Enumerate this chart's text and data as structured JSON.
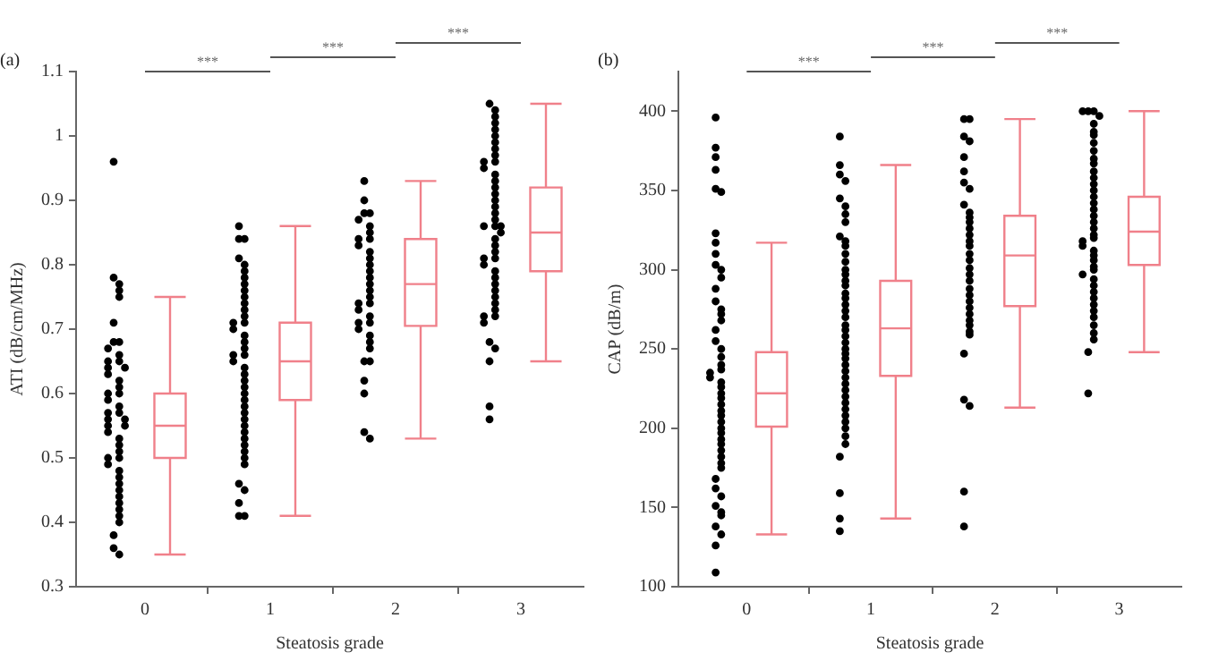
{
  "chart_data": [
    {
      "type": "box",
      "title": "(a)",
      "xlabel": "Steatosis grade",
      "ylabel": "ATI (dB/cm/MHz)",
      "categories": [
        "0",
        "1",
        "2",
        "3"
      ],
      "ylim": [
        0.3,
        1.1
      ],
      "yticks": [
        0.3,
        0.4,
        0.5,
        0.6,
        0.7,
        0.8,
        0.9,
        1,
        1.1
      ],
      "marker": "circle",
      "annotations": [
        "***",
        "***",
        "***"
      ],
      "series": [
        {
          "type": "scatter",
          "color": "#000000",
          "x": [
            "0",
            "0",
            "0",
            "0",
            "0",
            "0",
            "0",
            "0",
            "0",
            "0",
            "0",
            "0",
            "0",
            "0",
            "0",
            "0",
            "0",
            "0",
            "0",
            "0",
            "0",
            "0",
            "0",
            "0",
            "0",
            "0",
            "0",
            "0",
            "0",
            "0",
            "0",
            "0",
            "0",
            "0",
            "0",
            "0",
            "0",
            "0",
            "0",
            "0",
            "0",
            "0",
            "0",
            "0",
            "0",
            "0"
          ],
          "values": [
            0.96,
            0.78,
            0.77,
            0.76,
            0.75,
            0.71,
            0.68,
            0.68,
            0.67,
            0.66,
            0.65,
            0.65,
            0.64,
            0.64,
            0.63,
            0.62,
            0.61,
            0.6,
            0.6,
            0.59,
            0.58,
            0.57,
            0.57,
            0.56,
            0.56,
            0.55,
            0.55,
            0.54,
            0.53,
            0.52,
            0.51,
            0.5,
            0.5,
            0.49,
            0.48,
            0.47,
            0.46,
            0.45,
            0.44,
            0.43,
            0.42,
            0.41,
            0.4,
            0.38,
            0.36,
            0.35
          ]
        },
        {
          "type": "scatter",
          "color": "#000000",
          "x": [
            "1",
            "1",
            "1",
            "1",
            "1",
            "1",
            "1",
            "1",
            "1",
            "1",
            "1",
            "1",
            "1",
            "1",
            "1",
            "1",
            "1",
            "1",
            "1",
            "1",
            "1",
            "1",
            "1",
            "1",
            "1",
            "1",
            "1",
            "1",
            "1",
            "1",
            "1",
            "1",
            "1",
            "1",
            "1",
            "1",
            "1",
            "1",
            "1",
            "1",
            "1",
            "1",
            "1"
          ],
          "values": [
            0.86,
            0.84,
            0.84,
            0.81,
            0.8,
            0.79,
            0.78,
            0.77,
            0.76,
            0.75,
            0.74,
            0.73,
            0.72,
            0.71,
            0.71,
            0.7,
            0.69,
            0.68,
            0.67,
            0.66,
            0.66,
            0.65,
            0.64,
            0.63,
            0.62,
            0.61,
            0.6,
            0.59,
            0.58,
            0.57,
            0.56,
            0.55,
            0.54,
            0.53,
            0.52,
            0.51,
            0.5,
            0.49,
            0.46,
            0.45,
            0.43,
            0.41,
            0.41
          ]
        },
        {
          "type": "scatter",
          "color": "#000000",
          "x": [
            "2",
            "2",
            "2",
            "2",
            "2",
            "2",
            "2",
            "2",
            "2",
            "2",
            "2",
            "2",
            "2",
            "2",
            "2",
            "2",
            "2",
            "2",
            "2",
            "2",
            "2",
            "2",
            "2",
            "2",
            "2",
            "2",
            "2",
            "2",
            "2",
            "2",
            "2",
            "2",
            "2",
            "2"
          ],
          "values": [
            0.93,
            0.9,
            0.88,
            0.88,
            0.87,
            0.86,
            0.85,
            0.84,
            0.84,
            0.83,
            0.82,
            0.81,
            0.8,
            0.79,
            0.78,
            0.77,
            0.76,
            0.75,
            0.74,
            0.74,
            0.73,
            0.72,
            0.71,
            0.71,
            0.7,
            0.69,
            0.68,
            0.67,
            0.65,
            0.65,
            0.62,
            0.6,
            0.54,
            0.53
          ]
        },
        {
          "type": "scatter",
          "color": "#000000",
          "x": [
            "3",
            "3",
            "3",
            "3",
            "3",
            "3",
            "3",
            "3",
            "3",
            "3",
            "3",
            "3",
            "3",
            "3",
            "3",
            "3",
            "3",
            "3",
            "3",
            "3",
            "3",
            "3",
            "3",
            "3",
            "3",
            "3",
            "3",
            "3",
            "3",
            "3",
            "3",
            "3",
            "3",
            "3",
            "3",
            "3",
            "3",
            "3",
            "3",
            "3",
            "3",
            "3",
            "3",
            "3",
            "3"
          ],
          "values": [
            1.05,
            1.04,
            1.03,
            1.02,
            1.01,
            1,
            0.99,
            0.98,
            0.97,
            0.96,
            0.96,
            0.95,
            0.94,
            0.93,
            0.92,
            0.91,
            0.9,
            0.89,
            0.88,
            0.87,
            0.86,
            0.86,
            0.86,
            0.85,
            0.84,
            0.83,
            0.82,
            0.81,
            0.81,
            0.8,
            0.79,
            0.78,
            0.77,
            0.76,
            0.75,
            0.74,
            0.73,
            0.72,
            0.72,
            0.71,
            0.68,
            0.67,
            0.65,
            0.58,
            0.56
          ]
        },
        {
          "type": "box",
          "color": "#f0808a",
          "boxes": [
            {
              "low": 0.35,
              "q1": 0.5,
              "median": 0.55,
              "q3": 0.6,
              "high": 0.75
            },
            {
              "low": 0.41,
              "q1": 0.59,
              "median": 0.65,
              "q3": 0.71,
              "high": 0.86
            },
            {
              "low": 0.53,
              "q1": 0.705,
              "median": 0.77,
              "q3": 0.84,
              "high": 0.93
            },
            {
              "low": 0.65,
              "q1": 0.79,
              "median": 0.85,
              "q3": 0.92,
              "high": 1.05
            }
          ]
        }
      ]
    },
    {
      "type": "box",
      "title": "(b)",
      "xlabel": "Steatosis grade",
      "ylabel": "CAP (dB/m)",
      "categories": [
        "0",
        "1",
        "2",
        "3"
      ],
      "ylim": [
        100,
        425
      ],
      "yticks": [
        100,
        150,
        200,
        250,
        300,
        350,
        400
      ],
      "marker": "circle",
      "annotations": [
        "***",
        "***",
        "***"
      ],
      "series": [
        {
          "type": "scatter",
          "color": "#000000",
          "x": [
            "0",
            "0",
            "0",
            "0",
            "0",
            "0",
            "0",
            "0",
            "0",
            "0",
            "0",
            "0",
            "0",
            "0",
            "0",
            "0",
            "0",
            "0",
            "0",
            "0",
            "0",
            "0",
            "0",
            "0",
            "0",
            "0",
            "0",
            "0",
            "0",
            "0",
            "0",
            "0",
            "0",
            "0",
            "0",
            "0",
            "0",
            "0",
            "0",
            "0",
            "0",
            "0",
            "0",
            "0",
            "0",
            "0",
            "0",
            "0",
            "0",
            "0",
            "0"
          ],
          "values": [
            396,
            377,
            371,
            363,
            351,
            349,
            323,
            317,
            310,
            303,
            300,
            295,
            288,
            280,
            275,
            272,
            268,
            262,
            255,
            250,
            245,
            240,
            237,
            235,
            232,
            229,
            226,
            222,
            219,
            215,
            211,
            208,
            204,
            200,
            197,
            193,
            190,
            186,
            182,
            178,
            175,
            168,
            162,
            157,
            151,
            147,
            145,
            138,
            133,
            126,
            109
          ]
        },
        {
          "type": "scatter",
          "color": "#000000",
          "x": [
            "1",
            "1",
            "1",
            "1",
            "1",
            "1",
            "1",
            "1",
            "1",
            "1",
            "1",
            "1",
            "1",
            "1",
            "1",
            "1",
            "1",
            "1",
            "1",
            "1",
            "1",
            "1",
            "1",
            "1",
            "1",
            "1",
            "1",
            "1",
            "1",
            "1",
            "1",
            "1",
            "1",
            "1",
            "1",
            "1",
            "1",
            "1",
            "1",
            "1",
            "1",
            "1",
            "1",
            "1",
            "1",
            "1"
          ],
          "values": [
            384,
            366,
            360,
            356,
            345,
            340,
            335,
            330,
            321,
            318,
            315,
            310,
            305,
            300,
            297,
            293,
            290,
            285,
            282,
            278,
            274,
            270,
            265,
            262,
            258,
            254,
            250,
            247,
            244,
            240,
            236,
            232,
            228,
            224,
            220,
            216,
            212,
            208,
            204,
            200,
            195,
            190,
            182,
            159,
            143,
            135
          ]
        },
        {
          "type": "scatter",
          "color": "#000000",
          "x": [
            "2",
            "2",
            "2",
            "2",
            "2",
            "2",
            "2",
            "2",
            "2",
            "2",
            "2",
            "2",
            "2",
            "2",
            "2",
            "2",
            "2",
            "2",
            "2",
            "2",
            "2",
            "2",
            "2",
            "2",
            "2",
            "2",
            "2",
            "2",
            "2",
            "2",
            "2",
            "2",
            "2",
            "2",
            "2"
          ],
          "values": [
            395,
            395,
            384,
            381,
            371,
            362,
            355,
            351,
            341,
            336,
            333,
            330,
            326,
            322,
            318,
            315,
            310,
            306,
            301,
            297,
            293,
            288,
            284,
            280,
            276,
            272,
            268,
            265,
            261,
            259,
            247,
            218,
            214,
            160,
            138
          ]
        },
        {
          "type": "scatter",
          "color": "#000000",
          "x": [
            "3",
            "3",
            "3",
            "3",
            "3",
            "3",
            "3",
            "3",
            "3",
            "3",
            "3",
            "3",
            "3",
            "3",
            "3",
            "3",
            "3",
            "3",
            "3",
            "3",
            "3",
            "3",
            "3",
            "3",
            "3",
            "3",
            "3",
            "3",
            "3",
            "3",
            "3",
            "3",
            "3",
            "3",
            "3",
            "3",
            "3",
            "3",
            "3",
            "3",
            "3",
            "3",
            "3"
          ],
          "values": [
            400,
            400,
            400,
            397,
            392,
            387,
            385,
            380,
            375,
            370,
            367,
            362,
            358,
            354,
            350,
            346,
            342,
            338,
            334,
            330,
            326,
            322,
            320,
            318,
            315,
            312,
            309,
            306,
            302,
            300,
            297,
            294,
            290,
            286,
            282,
            278,
            274,
            270,
            265,
            260,
            256,
            248,
            222
          ]
        },
        {
          "type": "box",
          "color": "#f0808a",
          "boxes": [
            {
              "low": 133,
              "q1": 201,
              "median": 222,
              "q3": 248,
              "high": 317
            },
            {
              "low": 143,
              "q1": 233,
              "median": 263,
              "q3": 293,
              "high": 366
            },
            {
              "low": 213,
              "q1": 277,
              "median": 309,
              "q3": 334,
              "high": 395
            },
            {
              "low": 248,
              "q1": 303,
              "median": 324,
              "q3": 346,
              "high": 400
            }
          ]
        }
      ]
    }
  ]
}
